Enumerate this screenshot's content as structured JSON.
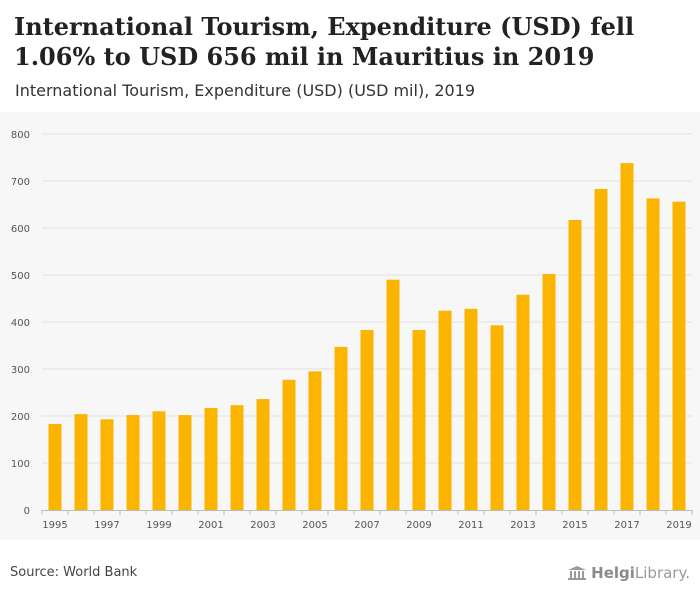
{
  "header": {
    "title": "International Tourism, Expenditure (USD) fell 1.06% to USD 656 mil in Mauritius in 2019",
    "subtitle": "International Tourism, Expenditure (USD) (USD mil), 2019"
  },
  "footer": {
    "source": "Source: World Bank",
    "brand_bold": "Helgi",
    "brand_rest": "Library",
    "brand_dot": "."
  },
  "colors": {
    "bar": "#FBB400",
    "grid": "#e2e2e2",
    "axis_text": "#555555",
    "background": "#f7f7f7"
  },
  "chart_data": {
    "type": "bar",
    "title": "International Tourism, Expenditure (USD) fell 1.06% to USD 656 mil in Mauritius in 2019",
    "subtitle": "International Tourism, Expenditure (USD) (USD mil), 2019",
    "xlabel": "",
    "ylabel": "",
    "categories": [
      "1995",
      "1996",
      "1997",
      "1998",
      "1999",
      "2000",
      "2001",
      "2002",
      "2003",
      "2004",
      "2005",
      "2006",
      "2007",
      "2008",
      "2009",
      "2010",
      "2011",
      "2012",
      "2013",
      "2014",
      "2015",
      "2016",
      "2017",
      "2018",
      "2019"
    ],
    "x_tick_labels": [
      "1995",
      "1997",
      "1999",
      "2001",
      "2003",
      "2005",
      "2007",
      "2009",
      "2011",
      "2013",
      "2015",
      "2017",
      "2019"
    ],
    "values": [
      183,
      204,
      193,
      202,
      210,
      202,
      217,
      223,
      236,
      277,
      295,
      347,
      383,
      490,
      383,
      424,
      428,
      393,
      458,
      502,
      617,
      683,
      738,
      663,
      656
    ],
    "ylim": [
      0,
      800
    ],
    "yticks": [
      0,
      100,
      200,
      300,
      400,
      500,
      600,
      700,
      800
    ],
    "grid": true,
    "legend": "none"
  }
}
